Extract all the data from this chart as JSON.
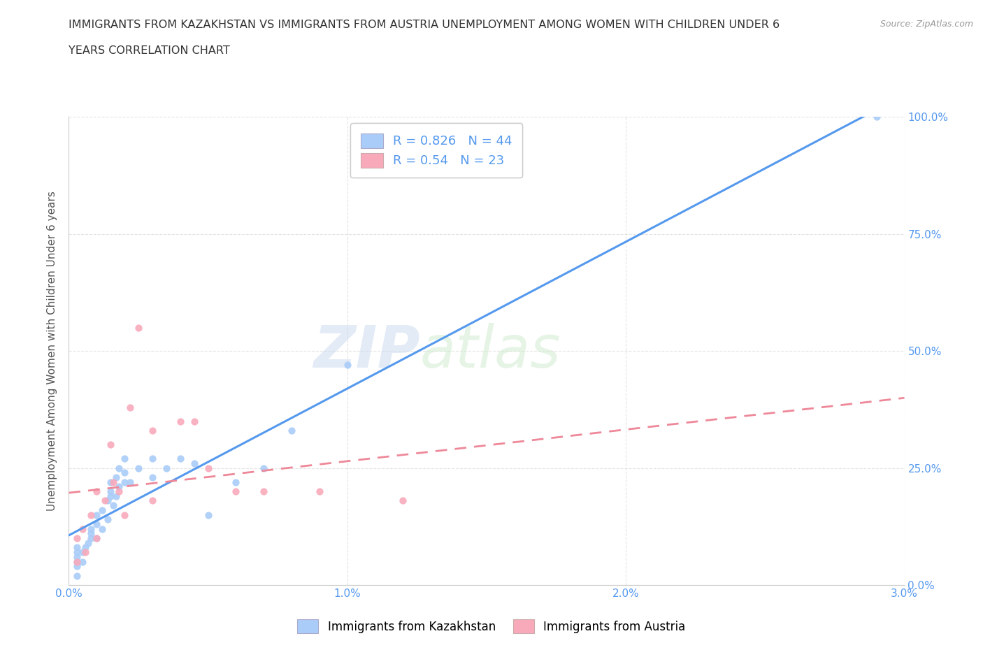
{
  "title_line1": "IMMIGRANTS FROM KAZAKHSTAN VS IMMIGRANTS FROM AUSTRIA UNEMPLOYMENT AMONG WOMEN WITH CHILDREN UNDER 6",
  "title_line2": "YEARS CORRELATION CHART",
  "source": "Source: ZipAtlas.com",
  "ylabel": "Unemployment Among Women with Children Under 6 years",
  "xlim": [
    0,
    0.03
  ],
  "ylim": [
    0,
    1.0
  ],
  "xticks": [
    0.0,
    0.01,
    0.02,
    0.03
  ],
  "xtick_labels": [
    "0.0%",
    "1.0%",
    "2.0%",
    "3.0%"
  ],
  "yticks": [
    0.0,
    0.25,
    0.5,
    0.75,
    1.0
  ],
  "ytick_labels": [
    "0.0%",
    "25.0%",
    "50.0%",
    "75.0%",
    "100.0%"
  ],
  "kazakhstan_color": "#aaccf8",
  "austria_color": "#f8aabb",
  "kazakhstan_line_color": "#5599ee",
  "austria_line_color": "#ee8899",
  "R_kazakhstan": 0.826,
  "N_kazakhstan": 44,
  "R_austria": 0.54,
  "N_austria": 23,
  "watermark_zip": "ZIP",
  "watermark_atlas": "atlas",
  "background_color": "#ffffff",
  "grid_color": "#dddddd",
  "tick_color": "#5599ee",
  "kazakhstan_x": [
    0.0003,
    0.0003,
    0.0003,
    0.0003,
    0.0003,
    0.0003,
    0.0005,
    0.0005,
    0.0006,
    0.0007,
    0.0008,
    0.0008,
    0.0008,
    0.001,
    0.001,
    0.001,
    0.0012,
    0.0012,
    0.0014,
    0.0014,
    0.0015,
    0.0015,
    0.0015,
    0.0016,
    0.0017,
    0.0017,
    0.0018,
    0.0018,
    0.002,
    0.002,
    0.002,
    0.0022,
    0.0025,
    0.003,
    0.003,
    0.0035,
    0.004,
    0.0045,
    0.005,
    0.006,
    0.007,
    0.008,
    0.01,
    0.029
  ],
  "kazakhstan_y": [
    0.02,
    0.04,
    0.05,
    0.06,
    0.07,
    0.08,
    0.05,
    0.07,
    0.08,
    0.09,
    0.1,
    0.11,
    0.12,
    0.1,
    0.13,
    0.15,
    0.12,
    0.16,
    0.14,
    0.18,
    0.19,
    0.2,
    0.22,
    0.17,
    0.19,
    0.23,
    0.21,
    0.25,
    0.22,
    0.24,
    0.27,
    0.22,
    0.25,
    0.23,
    0.27,
    0.25,
    0.27,
    0.26,
    0.15,
    0.22,
    0.25,
    0.33,
    0.47,
    1.0
  ],
  "austria_x": [
    0.0003,
    0.0003,
    0.0005,
    0.0006,
    0.0008,
    0.001,
    0.001,
    0.0013,
    0.0015,
    0.0016,
    0.0018,
    0.002,
    0.0022,
    0.0025,
    0.003,
    0.003,
    0.004,
    0.0045,
    0.005,
    0.006,
    0.007,
    0.009,
    0.012
  ],
  "austria_y": [
    0.05,
    0.1,
    0.12,
    0.07,
    0.15,
    0.2,
    0.1,
    0.18,
    0.3,
    0.22,
    0.2,
    0.15,
    0.38,
    0.55,
    0.18,
    0.33,
    0.35,
    0.35,
    0.25,
    0.2,
    0.2,
    0.2,
    0.18
  ]
}
